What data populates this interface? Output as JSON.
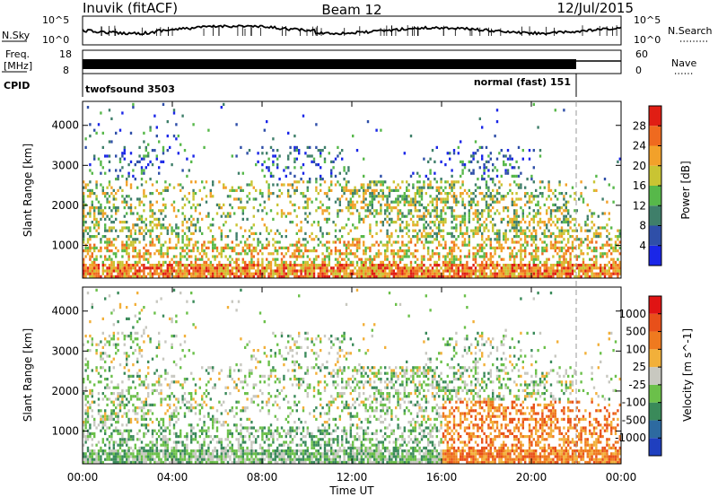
{
  "header": {
    "station": "Inuvik (fitACF)",
    "beam": "Beam 12",
    "date": "12/Jul/2015"
  },
  "chart_data": [
    {
      "type": "line",
      "name": "nsky-nsearch",
      "left_label": "N.Sky",
      "right_label": "N.Search",
      "left_ticks": [
        "10^5",
        "10^0"
      ],
      "right_ticks": [
        "10^5",
        "10^0"
      ],
      "note": "noise level traces"
    },
    {
      "type": "line",
      "name": "freq-nave",
      "left_label_top": "Freq.",
      "left_label_bottom": "[MHz]",
      "right_label": "Nave",
      "left_ticks": [
        "18",
        "8"
      ],
      "right_ticks": [
        "60",
        "0"
      ],
      "cpid_label": "CPID",
      "programs": [
        {
          "label": "twofsound 3503",
          "start_hour": 0,
          "end_hour": 22
        },
        {
          "label": "normal (fast) 151",
          "start_hour": 22,
          "end_hour": 24
        }
      ]
    },
    {
      "type": "heatmap",
      "name": "power",
      "ylabel": "Slant Range [km]",
      "yticks": [
        1000,
        2000,
        3000,
        4000
      ],
      "ylim": [
        180,
        4600
      ],
      "colorbar_label": "Power [dB]",
      "colorbar_ticks": [
        4,
        8,
        12,
        16,
        20,
        24,
        28
      ],
      "colors": [
        "#1a26e8",
        "#2f4fa8",
        "#3f7f6a",
        "#57b84a",
        "#c9c433",
        "#f2a12a",
        "#ef6a1f",
        "#e01e14"
      ]
    },
    {
      "type": "heatmap",
      "name": "velocity",
      "ylabel": "Slant Range [km]",
      "yticks": [
        1000,
        2000,
        3000,
        4000
      ],
      "ylim": [
        180,
        4600
      ],
      "colorbar_label": "Velocity [m s^-1]",
      "colorbar_ticks": [
        "1000",
        "500",
        "100",
        "25",
        "-25",
        "-100",
        "-500",
        "-1000"
      ],
      "colors": [
        "#1f3fbf",
        "#2d6aa0",
        "#3a8a5a",
        "#6bc04a",
        "#c8c8c0",
        "#f2b03a",
        "#ef7a1f",
        "#e8501a",
        "#e01414"
      ]
    }
  ],
  "time_axis": {
    "xlabel": "Time UT",
    "xticks": [
      "00:00",
      "04:00",
      "08:00",
      "12:00",
      "16:00",
      "20:00",
      "00:00"
    ],
    "xlim_hours": [
      0,
      24
    ],
    "mode_change_hour": 22
  }
}
